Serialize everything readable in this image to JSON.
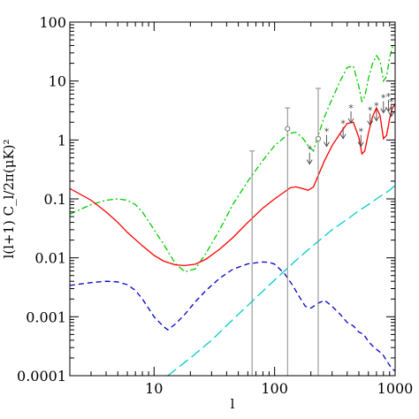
{
  "chart_data": {
    "type": "line",
    "xscale": "log",
    "yscale": "log",
    "xlim": [
      2,
      1000
    ],
    "ylim": [
      0.0001,
      100
    ],
    "xlabel": "l",
    "ylabel": "l(l+1) C_l/2π(μK)²",
    "x_ticks": [
      10,
      100,
      1000
    ],
    "x_tick_labels": [
      "10",
      "100",
      "1000"
    ],
    "y_ticks": [
      0.0001,
      0.001,
      0.01,
      0.1,
      1,
      10,
      100
    ],
    "y_tick_labels": [
      "0.0001",
      "0.001",
      "0.01",
      "0.1",
      "1",
      "10",
      "100"
    ],
    "grid": false,
    "legend": "none",
    "series": [
      {
        "color": "#00cc00",
        "dash": "dashdot",
        "x": [
          2,
          3,
          4,
          5,
          6,
          7,
          8,
          10,
          12,
          15,
          18,
          22,
          27,
          35,
          45,
          60,
          80,
          100,
          120,
          135,
          150,
          170,
          190,
          210,
          230,
          260,
          300,
          350,
          400,
          450,
          500,
          530,
          560,
          600,
          650,
          700,
          750,
          800,
          850,
          900,
          950,
          1000
        ],
        "y": [
          0.055,
          0.08,
          0.095,
          0.1,
          0.095,
          0.08,
          0.06,
          0.03,
          0.017,
          0.008,
          0.0058,
          0.0065,
          0.012,
          0.03,
          0.08,
          0.2,
          0.45,
          0.8,
          1.1,
          1.3,
          1.35,
          1.1,
          0.8,
          0.65,
          1.2,
          2.5,
          5,
          10,
          17,
          18,
          8,
          4.5,
          5.5,
          11,
          20,
          27,
          22,
          10,
          12,
          25,
          38,
          40
        ]
      },
      {
        "color": "#ff0000",
        "dash": "solid",
        "x": [
          2,
          3,
          4,
          5,
          6,
          8,
          10,
          12,
          15,
          18,
          22,
          27,
          35,
          45,
          60,
          80,
          100,
          120,
          135,
          150,
          170,
          190,
          210,
          230,
          260,
          300,
          350,
          400,
          450,
          500,
          530,
          560,
          600,
          650,
          700,
          750,
          800,
          850,
          900,
          950,
          1000
        ],
        "y": [
          0.15,
          0.095,
          0.06,
          0.04,
          0.027,
          0.016,
          0.011,
          0.0088,
          0.0076,
          0.0074,
          0.0078,
          0.0095,
          0.014,
          0.022,
          0.04,
          0.07,
          0.1,
          0.13,
          0.155,
          0.16,
          0.15,
          0.14,
          0.16,
          0.25,
          0.45,
          0.8,
          1.3,
          1.9,
          2,
          1.1,
          0.58,
          0.65,
          1.3,
          2.5,
          3.5,
          2.6,
          1.05,
          1.2,
          2.3,
          3.5,
          4
        ]
      },
      {
        "color": "#0000cc",
        "dash": "dashed",
        "x": [
          2,
          3,
          4,
          5,
          6,
          7,
          8,
          10,
          12,
          13,
          15,
          18,
          22,
          27,
          35,
          45,
          60,
          80,
          90,
          100,
          120,
          140,
          160,
          180,
          200,
          230,
          260,
          300,
          350,
          400,
          450,
          500,
          550,
          600,
          650,
          700,
          750,
          800,
          850,
          900,
          950,
          1000
        ],
        "y": [
          0.0034,
          0.0038,
          0.004,
          0.0039,
          0.0035,
          0.0028,
          0.002,
          0.001,
          0.00068,
          0.0006,
          0.00075,
          0.0011,
          0.0018,
          0.0028,
          0.0045,
          0.0064,
          0.0079,
          0.0085,
          0.0084,
          0.0078,
          0.0055,
          0.0035,
          0.0022,
          0.0015,
          0.0014,
          0.0017,
          0.0019,
          0.0015,
          0.0011,
          0.0008,
          0.0007,
          0.00055,
          0.0005,
          0.00038,
          0.00032,
          0.00028,
          0.00025,
          0.00022,
          0.00018,
          0.00015,
          0.00013,
          0.00012
        ]
      },
      {
        "color": "#00cccc",
        "dash": "longdash",
        "x": [
          13,
          20,
          30,
          50,
          70,
          100,
          150,
          200,
          300,
          400,
          500,
          600,
          700,
          800,
          900,
          1000
        ],
        "y": [
          0.0001,
          0.0002,
          0.0004,
          0.0011,
          0.0021,
          0.0042,
          0.009,
          0.015,
          0.03,
          0.045,
          0.063,
          0.08,
          0.1,
          0.12,
          0.14,
          0.17
        ]
      }
    ],
    "error_bars": [
      {
        "x": 65,
        "low": 0.0001,
        "high": 0.65,
        "marker": "none"
      },
      {
        "x": 128,
        "low": 0.0001,
        "high": 3.5,
        "center": 1.55,
        "marker": "circle"
      },
      {
        "x": 230,
        "low": 0.0001,
        "high": 7.5,
        "center": 1.05,
        "marker": "circle"
      }
    ],
    "upper_limits": [
      {
        "x": 195,
        "y": 0.7
      },
      {
        "x": 270,
        "y": 1.4
      },
      {
        "x": 370,
        "y": 1.9
      },
      {
        "x": 430,
        "y": 3.5
      },
      {
        "x": 520,
        "y": 1.4
      },
      {
        "x": 620,
        "y": 3.2
      },
      {
        "x": 700,
        "y": 3.8
      },
      {
        "x": 800,
        "y": 5.2
      },
      {
        "x": 880,
        "y": 5.5
      },
      {
        "x": 930,
        "y": 4.5
      }
    ]
  }
}
